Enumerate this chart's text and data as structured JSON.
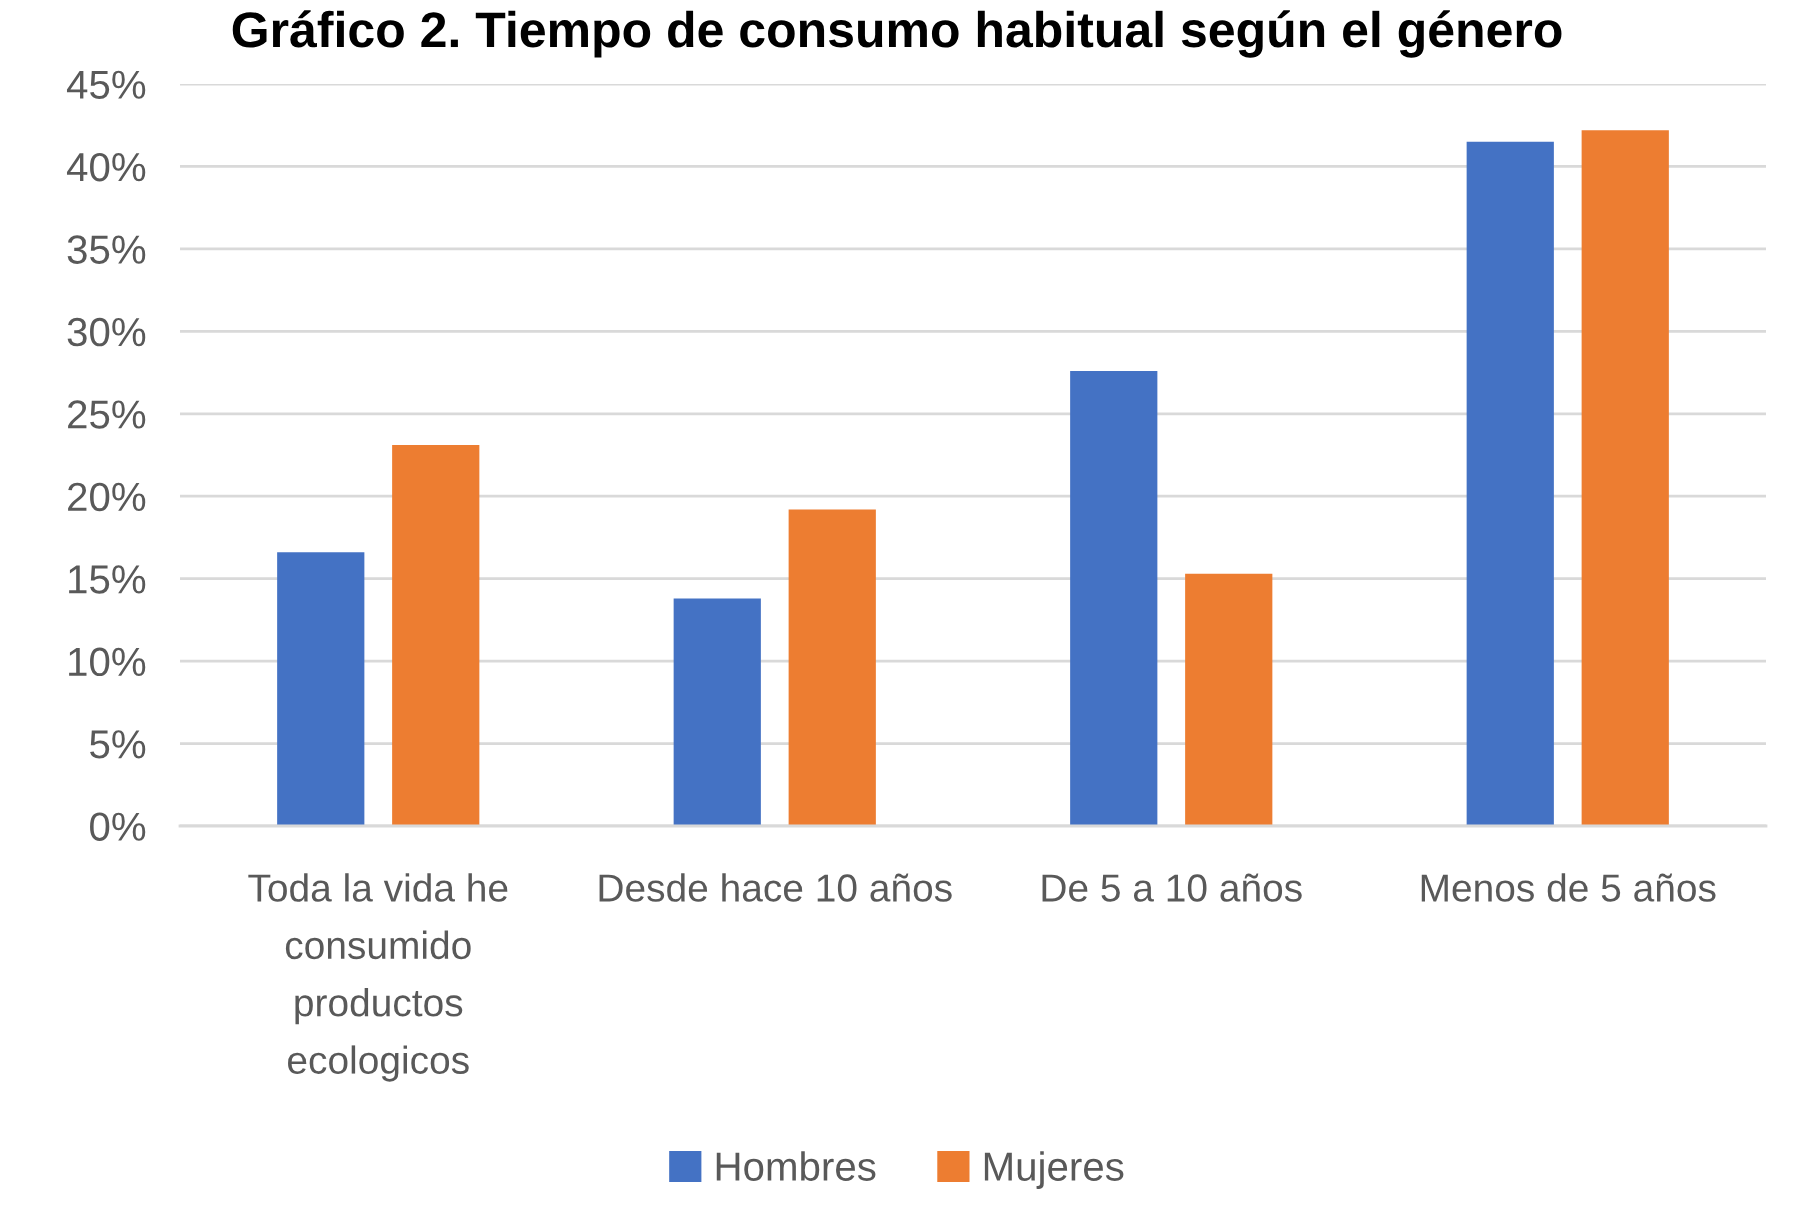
{
  "chart_data": {
    "type": "bar",
    "title": "Gráfico 2. Tiempo de consumo habitual según el género",
    "categories": [
      "Toda la vida he consumido productos ecologicos",
      "Desde hace 10 años",
      "De 5 a 10 años",
      "Menos de 5 años"
    ],
    "series": [
      {
        "name": "Hombres",
        "color": "#4472c4",
        "values": [
          16.6,
          13.8,
          27.6,
          41.5
        ]
      },
      {
        "name": "Mujeres",
        "color": "#ed7d31",
        "values": [
          23.1,
          19.2,
          15.3,
          42.2
        ]
      }
    ],
    "ylim": [
      0,
      45
    ],
    "yticks": [
      {
        "value": 0,
        "label": "0%"
      },
      {
        "value": 5,
        "label": "5%"
      },
      {
        "value": 10,
        "label": "10%"
      },
      {
        "value": 15,
        "label": "15%"
      },
      {
        "value": 20,
        "label": "20%"
      },
      {
        "value": 25,
        "label": "25%"
      },
      {
        "value": 30,
        "label": "30%"
      },
      {
        "value": 35,
        "label": "35%"
      },
      {
        "value": 40,
        "label": "40%"
      },
      {
        "value": 45,
        "label": "45%"
      }
    ],
    "grid": "y",
    "legend": "bottom"
  }
}
